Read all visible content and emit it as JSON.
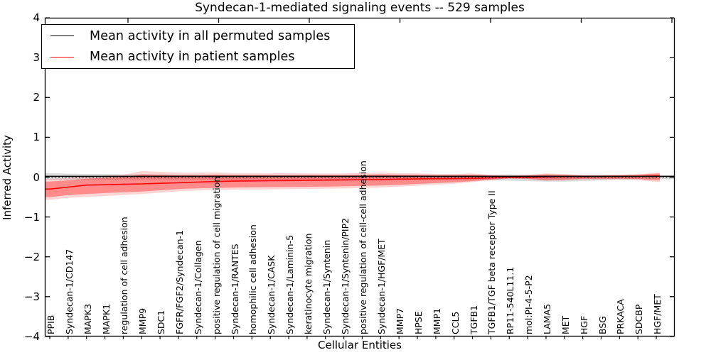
{
  "chart_data": {
    "type": "line",
    "title": "Syndecan-1-mediated signaling events -- 529 samples",
    "xlabel": "Cellular Entities",
    "ylabel": "Inferred Activity",
    "ylim": [
      -4,
      4
    ],
    "ytick_labels": [
      "4",
      "3",
      "2",
      "1",
      "0",
      "−1",
      "−2",
      "−3",
      "−4"
    ],
    "ytick_values": [
      4,
      3,
      2,
      1,
      0,
      -1,
      -2,
      -3,
      -4
    ],
    "grid": false,
    "legend_position": "upper left",
    "x_label_rotation": 90,
    "zero_line": 0,
    "categories": [
      "PPIB",
      "Syndecan-1/CD147",
      "MAPK3",
      "MAPK1",
      "regulation of cell adhesion",
      "MMP9",
      "SDC1",
      "FGFR/FGF2/Syndecan-1",
      "Syndecan-1/Collagen",
      "positive regulation of cell migration",
      "Syndecan-1/RANTES",
      "homophilic cell adhesion",
      "Syndecan-1/CASK",
      "Syndecan-1/Laminin-5",
      "keratinocyte migration",
      "Syndecan-1/Syntenin",
      "Syndecan-1/Syntenin/PIP2",
      "positive regulation of cell-cell adhesion",
      "Syndecan-1/HGF/MET",
      "MMP7",
      "HPSE",
      "MMP1",
      "CCL5",
      "TGFB1",
      "TGFB1/TGF beta receptor Type II",
      "RP11-540L11.1",
      "mol:PI-4-5-P2",
      "LAMA5",
      "MET",
      "HGF",
      "BSG",
      "PRKACA",
      "SDCBP",
      "HGF/MET"
    ],
    "series": [
      {
        "name": "Mean activity in all permuted samples",
        "color": "#000000",
        "values": [
          0.02,
          0.02,
          0.02,
          0.02,
          0.02,
          0.02,
          0.02,
          0.02,
          0.02,
          0.02,
          0.02,
          0.02,
          0.02,
          0.02,
          0.02,
          0.02,
          0.02,
          0.02,
          0.02,
          0.02,
          0.02,
          0.02,
          0.02,
          0.02,
          0.02,
          0.02,
          0.02,
          0.02,
          0.02,
          0.02,
          0.02,
          0.02,
          0.02,
          0.02
        ],
        "band_high": [
          0.1,
          0.09,
          0.08,
          0.08,
          0.07,
          0.07,
          0.07,
          0.06,
          0.06,
          0.06,
          0.06,
          0.06,
          0.06,
          0.06,
          0.06,
          0.06,
          0.06,
          0.06,
          0.06,
          0.06,
          0.06,
          0.06,
          0.06,
          0.06,
          0.06,
          0.07,
          0.06,
          0.06,
          0.06,
          0.06,
          0.06,
          0.05,
          0.05,
          0.05
        ],
        "band_low": [
          -0.06,
          -0.06,
          -0.06,
          -0.06,
          -0.06,
          -0.06,
          -0.06,
          -0.06,
          -0.06,
          -0.07,
          -0.07,
          -0.07,
          -0.07,
          -0.07,
          -0.07,
          -0.07,
          -0.07,
          -0.07,
          -0.07,
          -0.07,
          -0.07,
          -0.07,
          -0.07,
          -0.08,
          -0.08,
          -0.09,
          -0.1,
          -0.11,
          -0.11,
          -0.1,
          -0.08,
          -0.06,
          -0.05,
          -0.05
        ]
      },
      {
        "name": "Mean activity in patient samples",
        "color": "#ff0000",
        "values": [
          -0.3,
          -0.25,
          -0.2,
          -0.19,
          -0.18,
          -0.17,
          -0.155,
          -0.14,
          -0.125,
          -0.11,
          -0.1,
          -0.095,
          -0.09,
          -0.085,
          -0.08,
          -0.075,
          -0.07,
          -0.065,
          -0.06,
          -0.05,
          -0.045,
          -0.04,
          -0.035,
          -0.03,
          -0.02,
          -0.01,
          -0.01,
          0.0,
          0.01,
          0.01,
          0.015,
          0.015,
          0.02,
          0.03
        ],
        "band_low": [
          -0.5,
          -0.45,
          -0.42,
          -0.4,
          -0.38,
          -0.36,
          -0.33,
          -0.3,
          -0.28,
          -0.27,
          -0.26,
          -0.255,
          -0.25,
          -0.245,
          -0.24,
          -0.235,
          -0.23,
          -0.22,
          -0.21,
          -0.19,
          -0.17,
          -0.15,
          -0.13,
          -0.1,
          -0.06,
          -0.03,
          -0.04,
          -0.07,
          -0.06,
          -0.04,
          -0.04,
          -0.04,
          -0.05,
          -0.08
        ],
        "band_high": [
          -0.11,
          -0.08,
          -0.04,
          -0.02,
          0.0,
          0.07,
          0.06,
          0.05,
          0.05,
          0.06,
          0.05,
          0.05,
          0.05,
          0.05,
          0.05,
          0.05,
          0.05,
          0.06,
          0.07,
          0.06,
          0.06,
          0.05,
          0.05,
          0.06,
          0.04,
          0.03,
          0.04,
          0.07,
          0.06,
          0.04,
          0.04,
          0.05,
          0.06,
          0.09
        ]
      }
    ]
  }
}
